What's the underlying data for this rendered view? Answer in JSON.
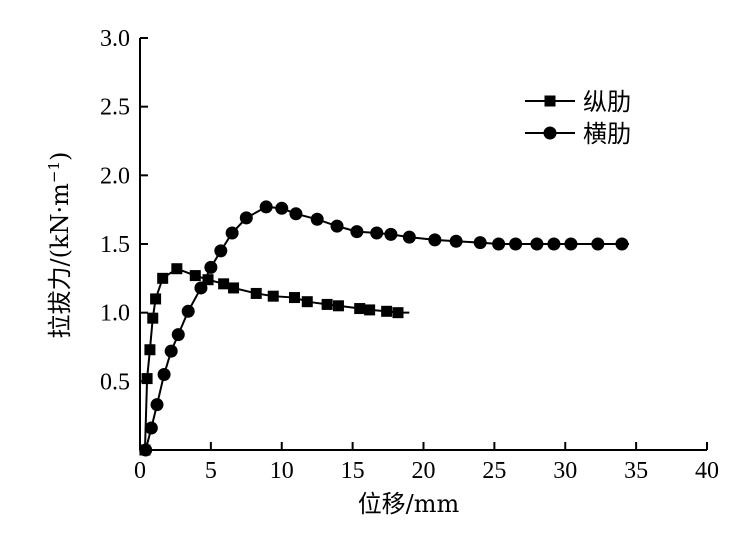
{
  "chart_data": {
    "type": "line",
    "title": "",
    "xlabel": "位移/mm",
    "ylabel_main": "拉拔力/(kN·m",
    "ylabel_sup": "−1",
    "ylabel_close": ")",
    "xlim": [
      0,
      40
    ],
    "ylim": [
      0,
      3.0
    ],
    "x_ticks": [
      0,
      5,
      10,
      15,
      20,
      25,
      30,
      35,
      40
    ],
    "x_tick_labels": [
      "0",
      "5",
      "10",
      "15",
      "20",
      "25",
      "30",
      "35",
      "40"
    ],
    "y_ticks": [
      0.5,
      1.0,
      1.5,
      2.0,
      2.5,
      3.0
    ],
    "y_tick_labels": [
      "0.5",
      "1.0",
      "1.5",
      "2.0",
      "2.5",
      "3.0"
    ],
    "grid": false,
    "legend_position": "top-right",
    "series": [
      {
        "name": "纵肋",
        "marker": "square",
        "points": [
          [
            0.35,
            0.0
          ],
          [
            0.5,
            0.52
          ],
          [
            0.7,
            0.73
          ],
          [
            0.9,
            0.96
          ],
          [
            1.1,
            1.1
          ],
          [
            1.6,
            1.25
          ],
          [
            2.6,
            1.32
          ],
          [
            3.9,
            1.27
          ],
          [
            4.8,
            1.24
          ],
          [
            5.9,
            1.21
          ],
          [
            6.6,
            1.18
          ],
          [
            8.2,
            1.14
          ],
          [
            9.4,
            1.12
          ],
          [
            10.9,
            1.11
          ],
          [
            11.8,
            1.08
          ],
          [
            13.2,
            1.06
          ],
          [
            14.0,
            1.05
          ],
          [
            15.5,
            1.03
          ],
          [
            16.2,
            1.02
          ],
          [
            17.4,
            1.01
          ],
          [
            18.2,
            1.0
          ]
        ],
        "line_end_x": 19.0
      },
      {
        "name": "横肋",
        "marker": "circle",
        "points": [
          [
            0.4,
            0.0
          ],
          [
            0.8,
            0.16
          ],
          [
            1.2,
            0.33
          ],
          [
            1.7,
            0.55
          ],
          [
            2.2,
            0.72
          ],
          [
            2.7,
            0.84
          ],
          [
            3.4,
            1.01
          ],
          [
            4.3,
            1.18
          ],
          [
            5.0,
            1.33
          ],
          [
            5.7,
            1.45
          ],
          [
            6.5,
            1.58
          ],
          [
            7.5,
            1.69
          ],
          [
            8.9,
            1.77
          ],
          [
            10.0,
            1.76
          ],
          [
            11.0,
            1.72
          ],
          [
            12.5,
            1.68
          ],
          [
            13.9,
            1.63
          ],
          [
            15.3,
            1.59
          ],
          [
            16.7,
            1.58
          ],
          [
            17.7,
            1.57
          ],
          [
            19.0,
            1.55
          ],
          [
            20.8,
            1.53
          ],
          [
            22.3,
            1.52
          ],
          [
            24.0,
            1.51
          ],
          [
            25.3,
            1.5
          ],
          [
            26.5,
            1.5
          ],
          [
            28.0,
            1.5
          ],
          [
            29.2,
            1.5
          ],
          [
            30.4,
            1.5
          ],
          [
            32.3,
            1.5
          ],
          [
            34.0,
            1.5
          ]
        ],
        "line_end_x": 34.5
      }
    ]
  }
}
